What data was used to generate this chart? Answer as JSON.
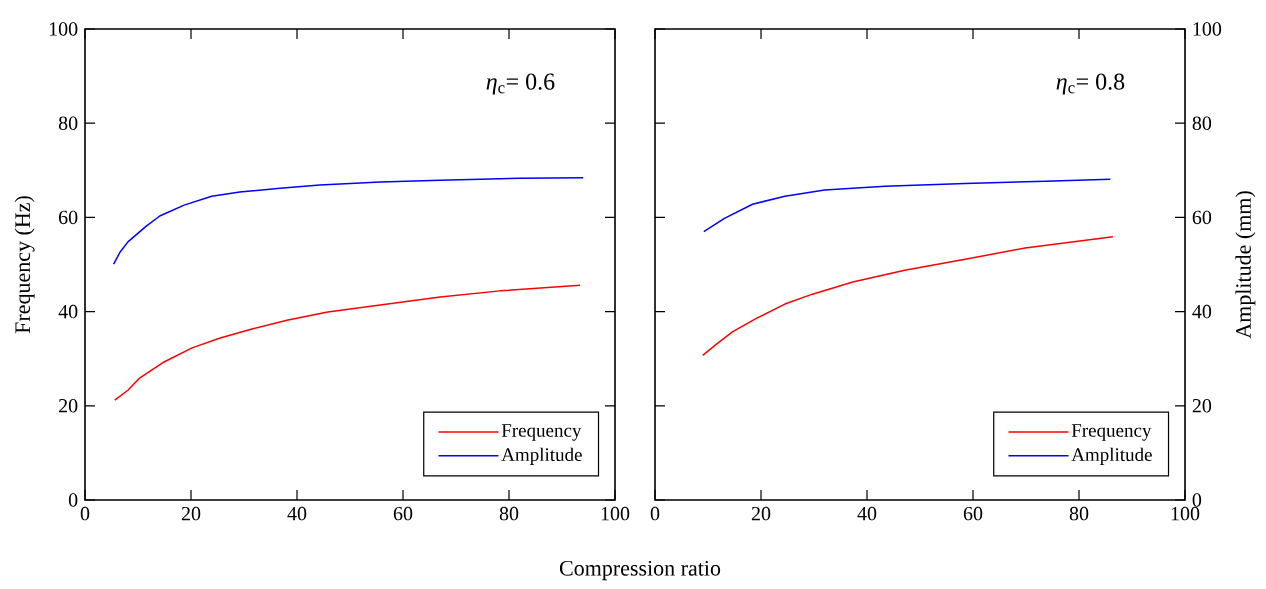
{
  "chart_data": [
    {
      "type": "line",
      "xlabel": "Compression ratio",
      "ylabel": "Frequency (Hz)",
      "annotations": [
        "*η*$_{c}$= 0.6"
      ],
      "xlim": [
        0,
        100
      ],
      "xticks": [
        0,
        20,
        40,
        60,
        80,
        100
      ],
      "ylim": [
        0,
        100
      ],
      "yticks": [
        0,
        20,
        40,
        60,
        80,
        100
      ],
      "legend": "bottom right",
      "series": [
        {
          "name": "Frequency",
          "color": "#ff0000",
          "x": [
            5.6,
            8.1,
            10.3,
            14.9,
            20.2,
            25.5,
            31.5,
            38.3,
            45.8,
            55.7,
            67,
            78.3,
            93.4
          ],
          "values": [
            21.2,
            23.3,
            25.9,
            29.3,
            32.3,
            34.4,
            36.3,
            38.2,
            39.9,
            41.4,
            43.1,
            44.4,
            45.6
          ]
        },
        {
          "name": "Amplitude",
          "color": "#0000ff",
          "x": [
            5.4,
            6.6,
            8.1,
            11.5,
            14.1,
            18.7,
            23.9,
            29.2,
            36.8,
            44.3,
            55.7,
            67,
            82.1,
            94
          ],
          "values": [
            50.1,
            52.6,
            54.8,
            58.1,
            60.3,
            62.6,
            64.5,
            65.4,
            66.2,
            66.9,
            67.5,
            67.9,
            68.3,
            68.4
          ]
        }
      ]
    },
    {
      "type": "line",
      "y2label": "Amplitude (mm)",
      "annotations": [
        "*η*$_{c}$= 0.8"
      ],
      "xlim": [
        0,
        100
      ],
      "xticks": [
        0,
        20,
        40,
        60,
        80,
        100
      ],
      "y2lim": [
        0,
        100
      ],
      "y2ticks": [
        0,
        20,
        40,
        60,
        80,
        100
      ],
      "legend": "bottom right",
      "series": [
        {
          "name": "Frequency",
          "color": "#ff0000",
          "axis": "y2",
          "x": [
            9,
            11.6,
            14.6,
            19.2,
            24.5,
            29.7,
            37.3,
            47.1,
            58.5,
            69.8,
            86.4
          ],
          "values": [
            30.7,
            33.1,
            35.7,
            38.6,
            41.6,
            43.7,
            46.3,
            48.8,
            51.1,
            53.5,
            55.9
          ]
        },
        {
          "name": "Amplitude",
          "color": "#0000ff",
          "axis": "y2",
          "x": [
            9.2,
            13.1,
            18.4,
            24.5,
            32,
            43.4,
            58.5,
            73.6,
            85.9
          ],
          "values": [
            57.0,
            59.8,
            62.8,
            64.5,
            65.8,
            66.6,
            67.2,
            67.7,
            68.1
          ]
        }
      ]
    }
  ]
}
